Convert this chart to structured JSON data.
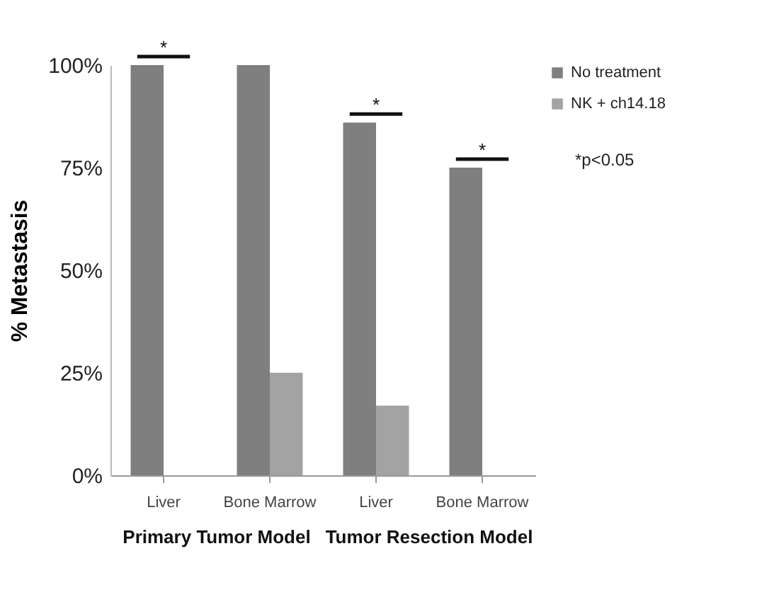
{
  "chart_data": {
    "type": "bar",
    "ylabel": "% Metastasis",
    "categories": [
      "Liver",
      "Bone Marrow",
      "Liver",
      "Bone Marrow"
    ],
    "series": [
      {
        "name": "No treatment",
        "color": "#7f7f7f",
        "values": [
          100,
          100,
          86,
          75
        ]
      },
      {
        "name": "NK + ch14.18",
        "color": "#a3a3a3",
        "values": [
          0,
          25,
          17,
          0
        ]
      }
    ],
    "ylim": [
      0,
      100
    ],
    "yticks": [
      {
        "value": 0,
        "label": "0%"
      },
      {
        "value": 25,
        "label": "25%"
      },
      {
        "value": 50,
        "label": "50%"
      },
      {
        "value": 75,
        "label": "75%"
      },
      {
        "value": 100,
        "label": "100%"
      }
    ],
    "grid": false,
    "legend": "right",
    "annotations": [
      "Primary Tumor Model",
      "Tumor Resection Model",
      "*p<0.05",
      "*",
      "*",
      "*"
    ]
  }
}
